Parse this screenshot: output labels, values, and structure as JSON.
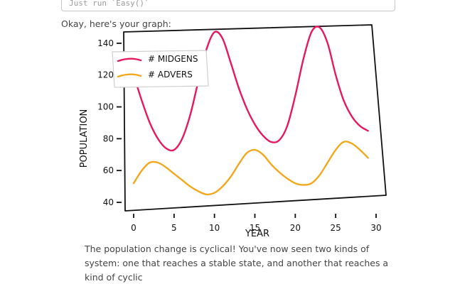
{
  "input": {
    "value": "Just run `Easy()`"
  },
  "intro_text": "Okay, here's your graph:",
  "caption_text": "The population change is cyclical! You've now seen two kinds of system: one that reaches a stable state, and another that reaches a kind of cyclic",
  "colors": {
    "midgens": "#e8185c",
    "advers": "#f2a81c",
    "axis": "#111111"
  },
  "chart_data": {
    "type": "line",
    "xlabel": "YEAR",
    "ylabel": "POPULATION",
    "xlim": [
      0,
      30
    ],
    "ylim": [
      40,
      148
    ],
    "xticks": [
      0,
      5,
      10,
      15,
      20,
      25,
      30
    ],
    "yticks": [
      40,
      60,
      80,
      100,
      120,
      140
    ],
    "legend_position": "top-left",
    "series": [
      {
        "name": "# MIDGENS",
        "color": "#e8185c",
        "x": [
          0,
          1,
          2,
          3,
          4,
          5,
          6,
          7,
          8,
          9,
          10,
          11,
          12,
          13,
          14,
          15,
          16,
          17,
          18,
          19,
          20,
          21,
          22,
          23,
          24,
          25,
          26,
          27,
          28,
          29
        ],
        "y": [
          120,
          104,
          90,
          80,
          74,
          73,
          80,
          95,
          116,
          136,
          147,
          143,
          128,
          112,
          99,
          89,
          82,
          78,
          79,
          88,
          107,
          130,
          147,
          150,
          140,
          120,
          104,
          94,
          88,
          85
        ]
      },
      {
        "name": "# ADVERS",
        "color": "#f2a81c",
        "x": [
          0,
          1,
          2,
          3,
          4,
          5,
          6,
          7,
          8,
          9,
          10,
          11,
          12,
          13,
          14,
          15,
          16,
          17,
          18,
          19,
          20,
          21,
          22,
          23,
          24,
          25,
          26,
          27,
          28,
          29
        ],
        "y": [
          52,
          60,
          65,
          65,
          62,
          58,
          54,
          50,
          47,
          45,
          46,
          50,
          56,
          64,
          71,
          73,
          70,
          64,
          59,
          55,
          52,
          51,
          52,
          57,
          65,
          73,
          78,
          77,
          73,
          68
        ]
      }
    ]
  }
}
